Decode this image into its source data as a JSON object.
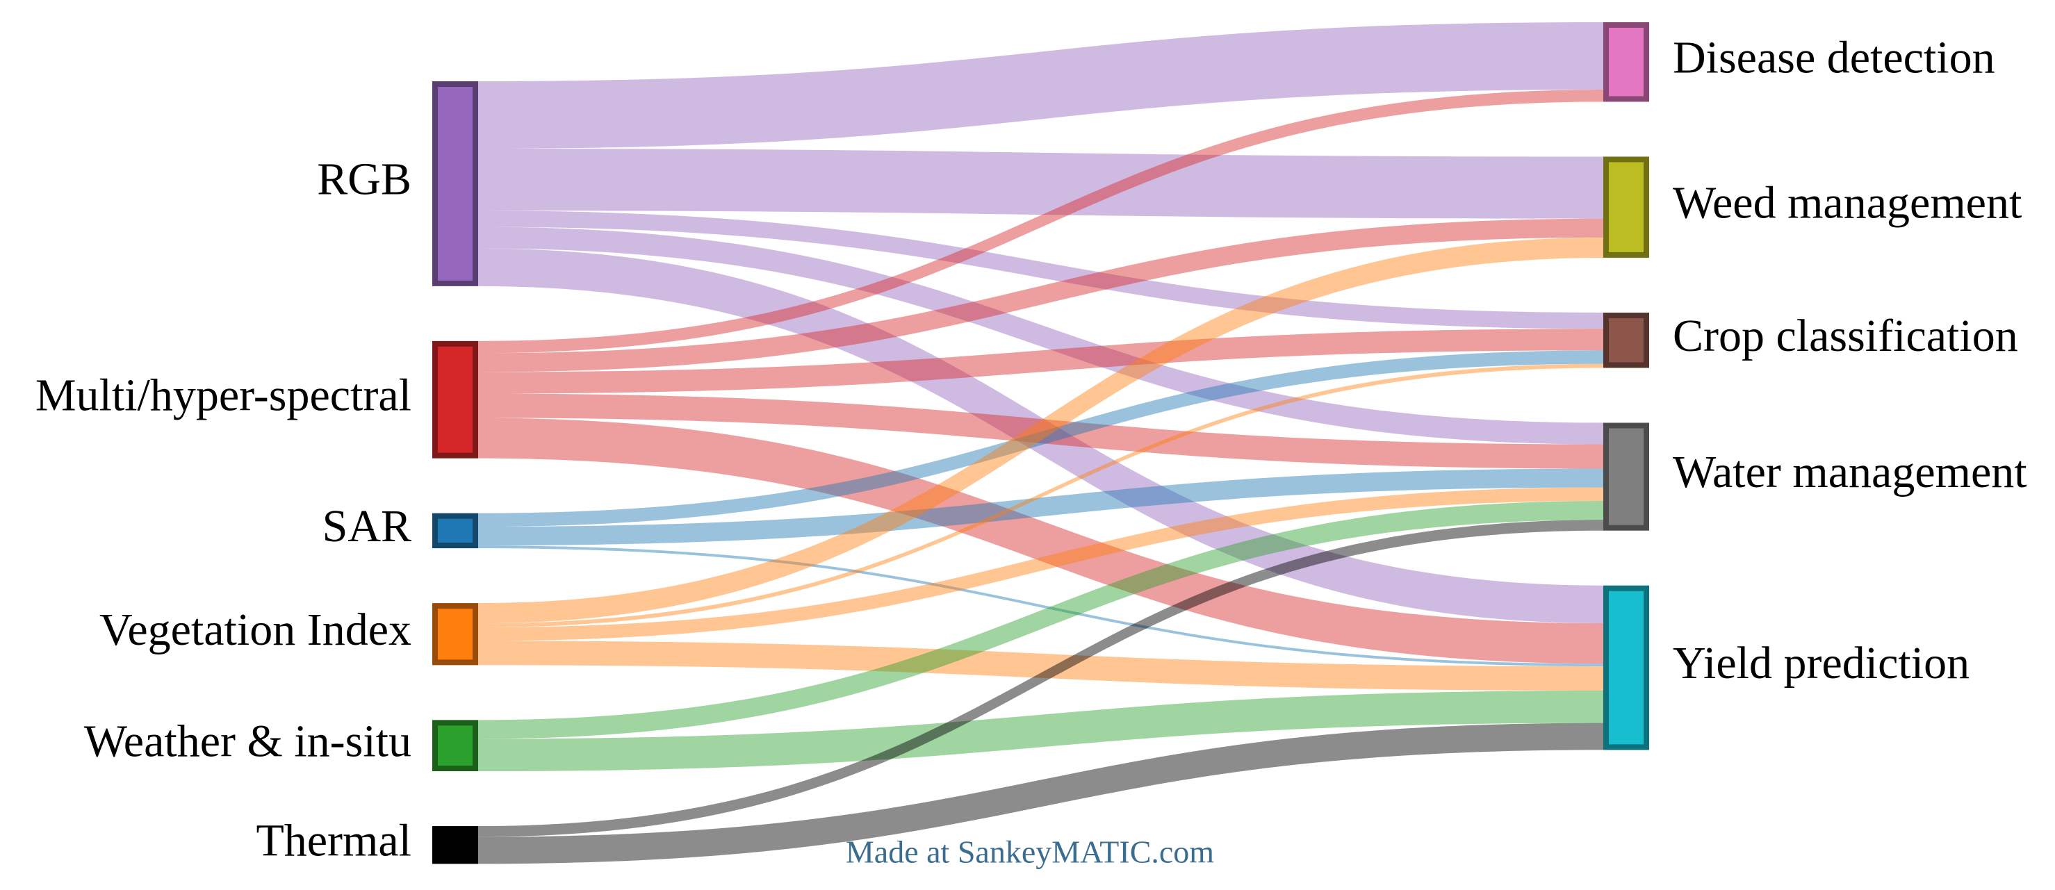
{
  "chart_data": {
    "type": "sankey",
    "nodes": [
      {
        "name": "RGB",
        "color": "#9467bd"
      },
      {
        "name": "Multi/hyper-spectral",
        "color": "#d62728"
      },
      {
        "name": "SAR",
        "color": "#1f77b4"
      },
      {
        "name": "Vegetation Index",
        "color": "#ff7f0e"
      },
      {
        "name": "Weather & in-situ",
        "color": "#2ca02c"
      },
      {
        "name": "Thermal",
        "color": "#000000"
      },
      {
        "name": "Disease detection",
        "color": "#e377c2"
      },
      {
        "name": "Weed management",
        "color": "#bcbd22"
      },
      {
        "name": "Crop classification",
        "color": "#8c564b"
      },
      {
        "name": "Water management",
        "color": "#7f7f7f"
      },
      {
        "name": "Yield prediction",
        "color": "#17becf"
      }
    ],
    "links": [
      {
        "source": "RGB",
        "target": "Disease detection",
        "value": 50
      },
      {
        "source": "RGB",
        "target": "Weed management",
        "value": 46
      },
      {
        "source": "RGB",
        "target": "Crop classification",
        "value": 12
      },
      {
        "source": "RGB",
        "target": "Water management",
        "value": 16
      },
      {
        "source": "RGB",
        "target": "Yield prediction",
        "value": 28
      },
      {
        "source": "Multi/hyper-spectral",
        "target": "Disease detection",
        "value": 9
      },
      {
        "source": "Multi/hyper-spectral",
        "target": "Weed management",
        "value": 14
      },
      {
        "source": "Multi/hyper-spectral",
        "target": "Crop classification",
        "value": 16
      },
      {
        "source": "Multi/hyper-spectral",
        "target": "Water management",
        "value": 18
      },
      {
        "source": "Multi/hyper-spectral",
        "target": "Yield prediction",
        "value": 30
      },
      {
        "source": "SAR",
        "target": "Crop classification",
        "value": 10
      },
      {
        "source": "SAR",
        "target": "Water management",
        "value": 14
      },
      {
        "source": "SAR",
        "target": "Yield prediction",
        "value": 2
      },
      {
        "source": "Vegetation Index",
        "target": "Weed management",
        "value": 15
      },
      {
        "source": "Vegetation Index",
        "target": "Crop classification",
        "value": 3
      },
      {
        "source": "Vegetation Index",
        "target": "Water management",
        "value": 10
      },
      {
        "source": "Vegetation Index",
        "target": "Yield prediction",
        "value": 18
      },
      {
        "source": "Weather & in-situ",
        "target": "Water management",
        "value": 14
      },
      {
        "source": "Weather & in-situ",
        "target": "Yield prediction",
        "value": 24
      },
      {
        "source": "Thermal",
        "target": "Water management",
        "value": 8
      },
      {
        "source": "Thermal",
        "target": "Yield prediction",
        "value": 20
      }
    ],
    "credit": "Made at SankeyMATIC.com"
  }
}
